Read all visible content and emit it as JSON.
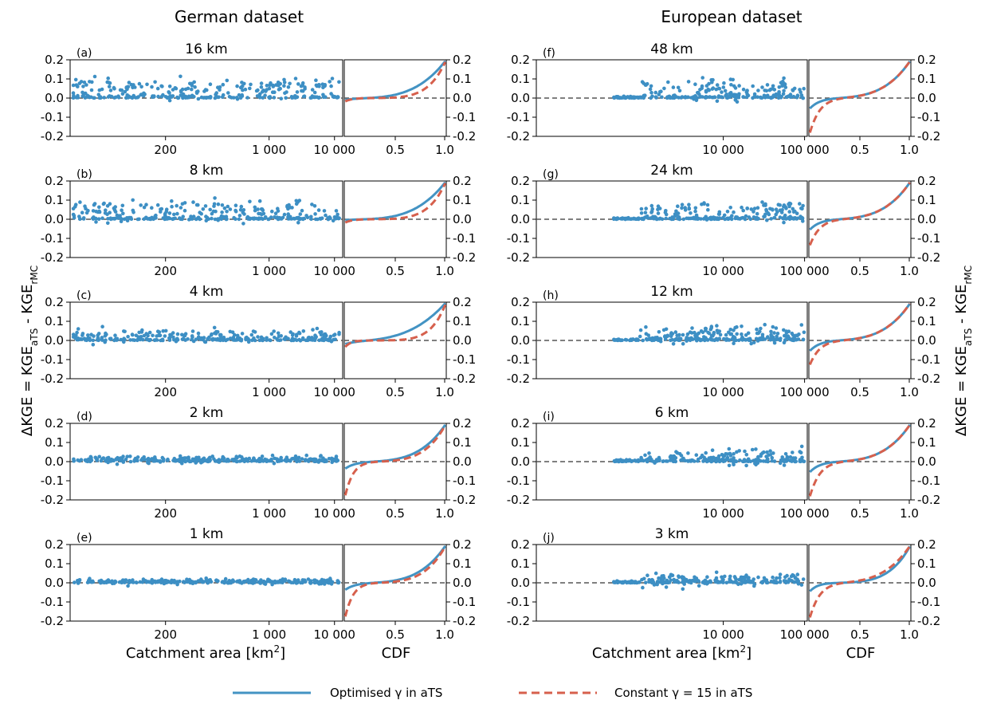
{
  "figure": {
    "dataset_titles": [
      "German dataset",
      "European dataset"
    ],
    "ylabel_main": "ΔKGE = KGE",
    "ylabel_sub1": "aTS",
    "ylabel_mid": " - KGE",
    "ylabel_sub2": "rMC",
    "xlabel_scatter_main": "Catchment area [km",
    "xlabel_scatter_sup": "2",
    "xlabel_scatter_end": "]",
    "xlabel_cdf": "CDF",
    "legend": [
      {
        "label": "Optimised γ  in aTS",
        "color": "#4393c3",
        "style": "solid"
      },
      {
        "label": "Constant γ = 15 in aTS",
        "color": "#d6604d",
        "style": "dashed"
      }
    ]
  },
  "chart_data": [
    {
      "type": "scatter",
      "column": "German dataset",
      "panel": "(a)",
      "title": "16 km",
      "x_scale": "log",
      "x_ticks": [
        "200",
        "1 000",
        "10 000"
      ],
      "y_ticks": [
        "0.2",
        "0.1",
        "0.0",
        "-0.1",
        "-0.2"
      ],
      "ylim": [
        -0.2,
        0.2
      ],
      "mean": 0.045,
      "spread": 0.045,
      "cdf_series": [
        {
          "name": "Optimised γ  in aTS",
          "start": -0.01,
          "end": 0.2,
          "shape": 3.5
        },
        {
          "name": "Constant γ = 15 in aTS",
          "start": -0.02,
          "end": 0.2,
          "shape": 6
        }
      ]
    },
    {
      "type": "scatter",
      "column": "German dataset",
      "panel": "(b)",
      "title": "8 km",
      "x_scale": "log",
      "x_ticks": [
        "200",
        "1 000",
        "10 000"
      ],
      "y_ticks": [
        "0.2",
        "0.1",
        "0.0",
        "-0.1",
        "-0.2"
      ],
      "ylim": [
        -0.2,
        0.2
      ],
      "mean": 0.045,
      "spread": 0.04,
      "cdf_series": [
        {
          "name": "Optimised γ  in aTS",
          "start": -0.005,
          "end": 0.2,
          "shape": 3.5
        },
        {
          "name": "Constant γ = 15 in aTS",
          "start": -0.02,
          "end": 0.2,
          "shape": 6
        }
      ]
    },
    {
      "type": "scatter",
      "column": "German dataset",
      "panel": "(c)",
      "title": "4 km",
      "x_scale": "log",
      "x_ticks": [
        "200",
        "1 000",
        "10 000"
      ],
      "y_ticks": [
        "0.2",
        "0.1",
        "0.0",
        "-0.1",
        "-0.2"
      ],
      "ylim": [
        -0.2,
        0.2
      ],
      "mean": 0.025,
      "spread": 0.03,
      "cdf_series": [
        {
          "name": "Optimised γ  in aTS",
          "start": -0.02,
          "end": 0.2,
          "shape": 3
        },
        {
          "name": "Constant γ = 15 in aTS",
          "start": -0.04,
          "end": 0.2,
          "shape": 7
        }
      ]
    },
    {
      "type": "scatter",
      "column": "German dataset",
      "panel": "(d)",
      "title": "2 km",
      "x_scale": "log",
      "x_ticks": [
        "200",
        "1 000",
        "10 000"
      ],
      "y_ticks": [
        "0.2",
        "0.1",
        "0.0",
        "-0.1",
        "-0.2"
      ],
      "ylim": [
        -0.2,
        0.2
      ],
      "mean": 0.012,
      "spread": 0.02,
      "cdf_series": [
        {
          "name": "Optimised γ  in aTS",
          "start": -0.04,
          "end": 0.2,
          "shape": 4
        },
        {
          "name": "Constant γ = 15 in aTS",
          "start": -0.2,
          "end": 0.2,
          "shape": 5
        }
      ]
    },
    {
      "type": "scatter",
      "column": "German dataset",
      "panel": "(e)",
      "title": "1 km",
      "x_scale": "log",
      "x_ticks": [
        "200",
        "1 000",
        "10 000"
      ],
      "y_ticks": [
        "0.2",
        "0.1",
        "0.0",
        "-0.1",
        "-0.2"
      ],
      "ylim": [
        -0.2,
        0.2
      ],
      "mean": 0.008,
      "spread": 0.015,
      "cdf_series": [
        {
          "name": "Optimised γ  in aTS",
          "start": -0.04,
          "end": 0.2,
          "shape": 4
        },
        {
          "name": "Constant γ = 15 in aTS",
          "start": -0.2,
          "end": 0.2,
          "shape": 5
        }
      ]
    },
    {
      "type": "scatter",
      "column": "European dataset",
      "panel": "(f)",
      "title": "48 km",
      "x_scale": "log",
      "x_ticks": [
        "10 000",
        "100 000"
      ],
      "y_ticks": [
        "0.2",
        "0.1",
        "0.0",
        "-0.1",
        "-0.2"
      ],
      "ylim": [
        -0.2,
        0.2
      ],
      "mean": 0.04,
      "spread": 0.05,
      "cdf_series": [
        {
          "name": "Optimised γ  in aTS",
          "start": -0.06,
          "end": 0.2,
          "shape": 4
        },
        {
          "name": "Constant γ = 15 in aTS",
          "start": -0.2,
          "end": 0.2,
          "shape": 4
        }
      ]
    },
    {
      "type": "scatter",
      "column": "European dataset",
      "panel": "(g)",
      "title": "24 km",
      "x_scale": "log",
      "x_ticks": [
        "10 000",
        "100 000"
      ],
      "y_ticks": [
        "0.2",
        "0.1",
        "0.0",
        "-0.1",
        "-0.2"
      ],
      "ylim": [
        -0.2,
        0.2
      ],
      "mean": 0.04,
      "spread": 0.05,
      "cdf_series": [
        {
          "name": "Optimised γ  in aTS",
          "start": -0.06,
          "end": 0.2,
          "shape": 4
        },
        {
          "name": "Constant γ = 15 in aTS",
          "start": -0.15,
          "end": 0.2,
          "shape": 4
        }
      ]
    },
    {
      "type": "scatter",
      "column": "European dataset",
      "panel": "(h)",
      "title": "12 km",
      "x_scale": "log",
      "x_ticks": [
        "10 000",
        "100 000"
      ],
      "y_ticks": [
        "0.2",
        "0.1",
        "0.0",
        "-0.1",
        "-0.2"
      ],
      "ylim": [
        -0.2,
        0.2
      ],
      "mean": 0.035,
      "spread": 0.05,
      "cdf_series": [
        {
          "name": "Optimised γ  in aTS",
          "start": -0.06,
          "end": 0.2,
          "shape": 4
        },
        {
          "name": "Constant γ = 15 in aTS",
          "start": -0.14,
          "end": 0.2,
          "shape": 4
        }
      ]
    },
    {
      "type": "scatter",
      "column": "European dataset",
      "panel": "(i)",
      "title": "6 km",
      "x_scale": "log",
      "x_ticks": [
        "10 000",
        "100 000"
      ],
      "y_ticks": [
        "0.2",
        "0.1",
        "0.0",
        "-0.1",
        "-0.2"
      ],
      "ylim": [
        -0.2,
        0.2
      ],
      "mean": 0.025,
      "spread": 0.045,
      "cdf_series": [
        {
          "name": "Optimised γ  in aTS",
          "start": -0.06,
          "end": 0.2,
          "shape": 4
        },
        {
          "name": "Constant γ = 15 in aTS",
          "start": -0.2,
          "end": 0.2,
          "shape": 4
        }
      ]
    },
    {
      "type": "scatter",
      "column": "European dataset",
      "panel": "(j)",
      "title": "3 km",
      "x_scale": "log",
      "x_ticks": [
        "10 000",
        "100 000"
      ],
      "y_ticks": [
        "0.2",
        "0.1",
        "0.0",
        "-0.1",
        "-0.2"
      ],
      "ylim": [
        -0.2,
        0.2
      ],
      "mean": 0.015,
      "spread": 0.04,
      "cdf_series": [
        {
          "name": "Optimised γ  in aTS",
          "start": -0.05,
          "end": 0.2,
          "shape": 5
        },
        {
          "name": "Constant γ = 15 in aTS",
          "start": -0.2,
          "end": 0.2,
          "shape": 4
        }
      ]
    }
  ],
  "cdf_x_ticks": [
    "0.5",
    "1.0"
  ],
  "cdf_ylim": [
    -0.2,
    0.2
  ]
}
